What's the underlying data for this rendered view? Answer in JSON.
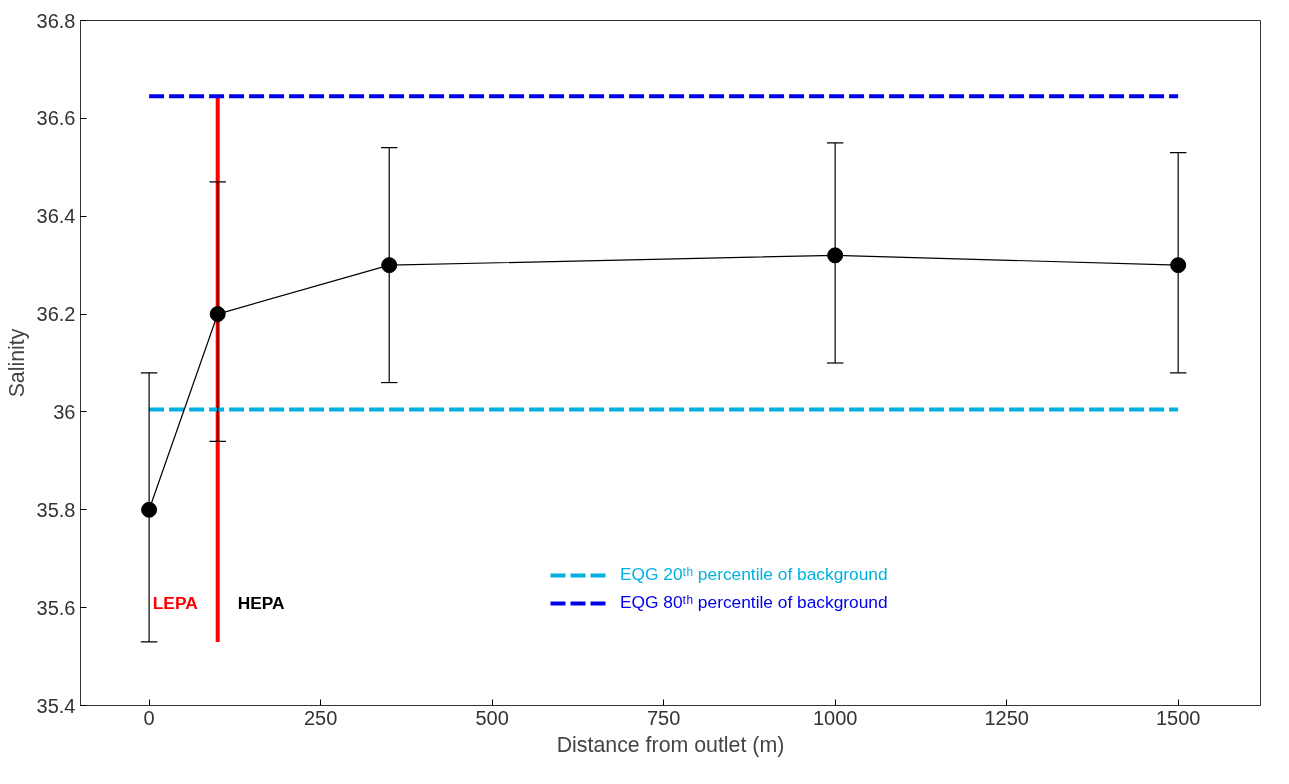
{
  "chart_data": {
    "type": "line",
    "xlabel": "Distance from outlet (m)",
    "ylabel": "Salinity",
    "xlim": [
      -100,
      1620
    ],
    "xticks": [
      0,
      250,
      500,
      750,
      1000,
      1250,
      1500
    ],
    "ylim": [
      35.4,
      36.8
    ],
    "yticks": [
      35.4,
      35.6,
      35.8,
      36,
      36.2,
      36.4,
      36.6,
      36.8
    ],
    "grid": false,
    "legend": "bottom right",
    "marker": "circle",
    "line_style": "solid",
    "series": [
      {
        "color": "#000000",
        "x": [
          0,
          100,
          350,
          1000,
          1500
        ],
        "values": [
          35.8,
          36.2,
          36.3,
          36.32,
          36.3
        ],
        "errors": [
          [
            35.53,
            36.08
          ],
          [
            35.94,
            36.47
          ],
          [
            36.06,
            36.54
          ],
          [
            36.1,
            36.55
          ],
          [
            36.08,
            36.53
          ]
        ]
      },
      {
        "color": "#ff0000",
        "x": [
          100,
          100
        ],
        "values": [
          35.53,
          36.645
        ],
        "marker": "none"
      },
      {
        "name": "EQG 20ᵗʰ percentile of background",
        "color": "#00b0e0",
        "x": [
          0,
          1500
        ],
        "values": [
          36.005,
          36.005
        ],
        "marker": "none",
        "line_style": "dashed"
      },
      {
        "name": "EQG 80ᵗʰ percentile of background",
        "color": "#0000ee",
        "x": [
          0,
          1500
        ],
        "values": [
          36.645,
          36.645
        ],
        "marker": "none",
        "line_style": "dashed"
      }
    ],
    "annotations": [
      "LEPA",
      "HEPA"
    ]
  }
}
